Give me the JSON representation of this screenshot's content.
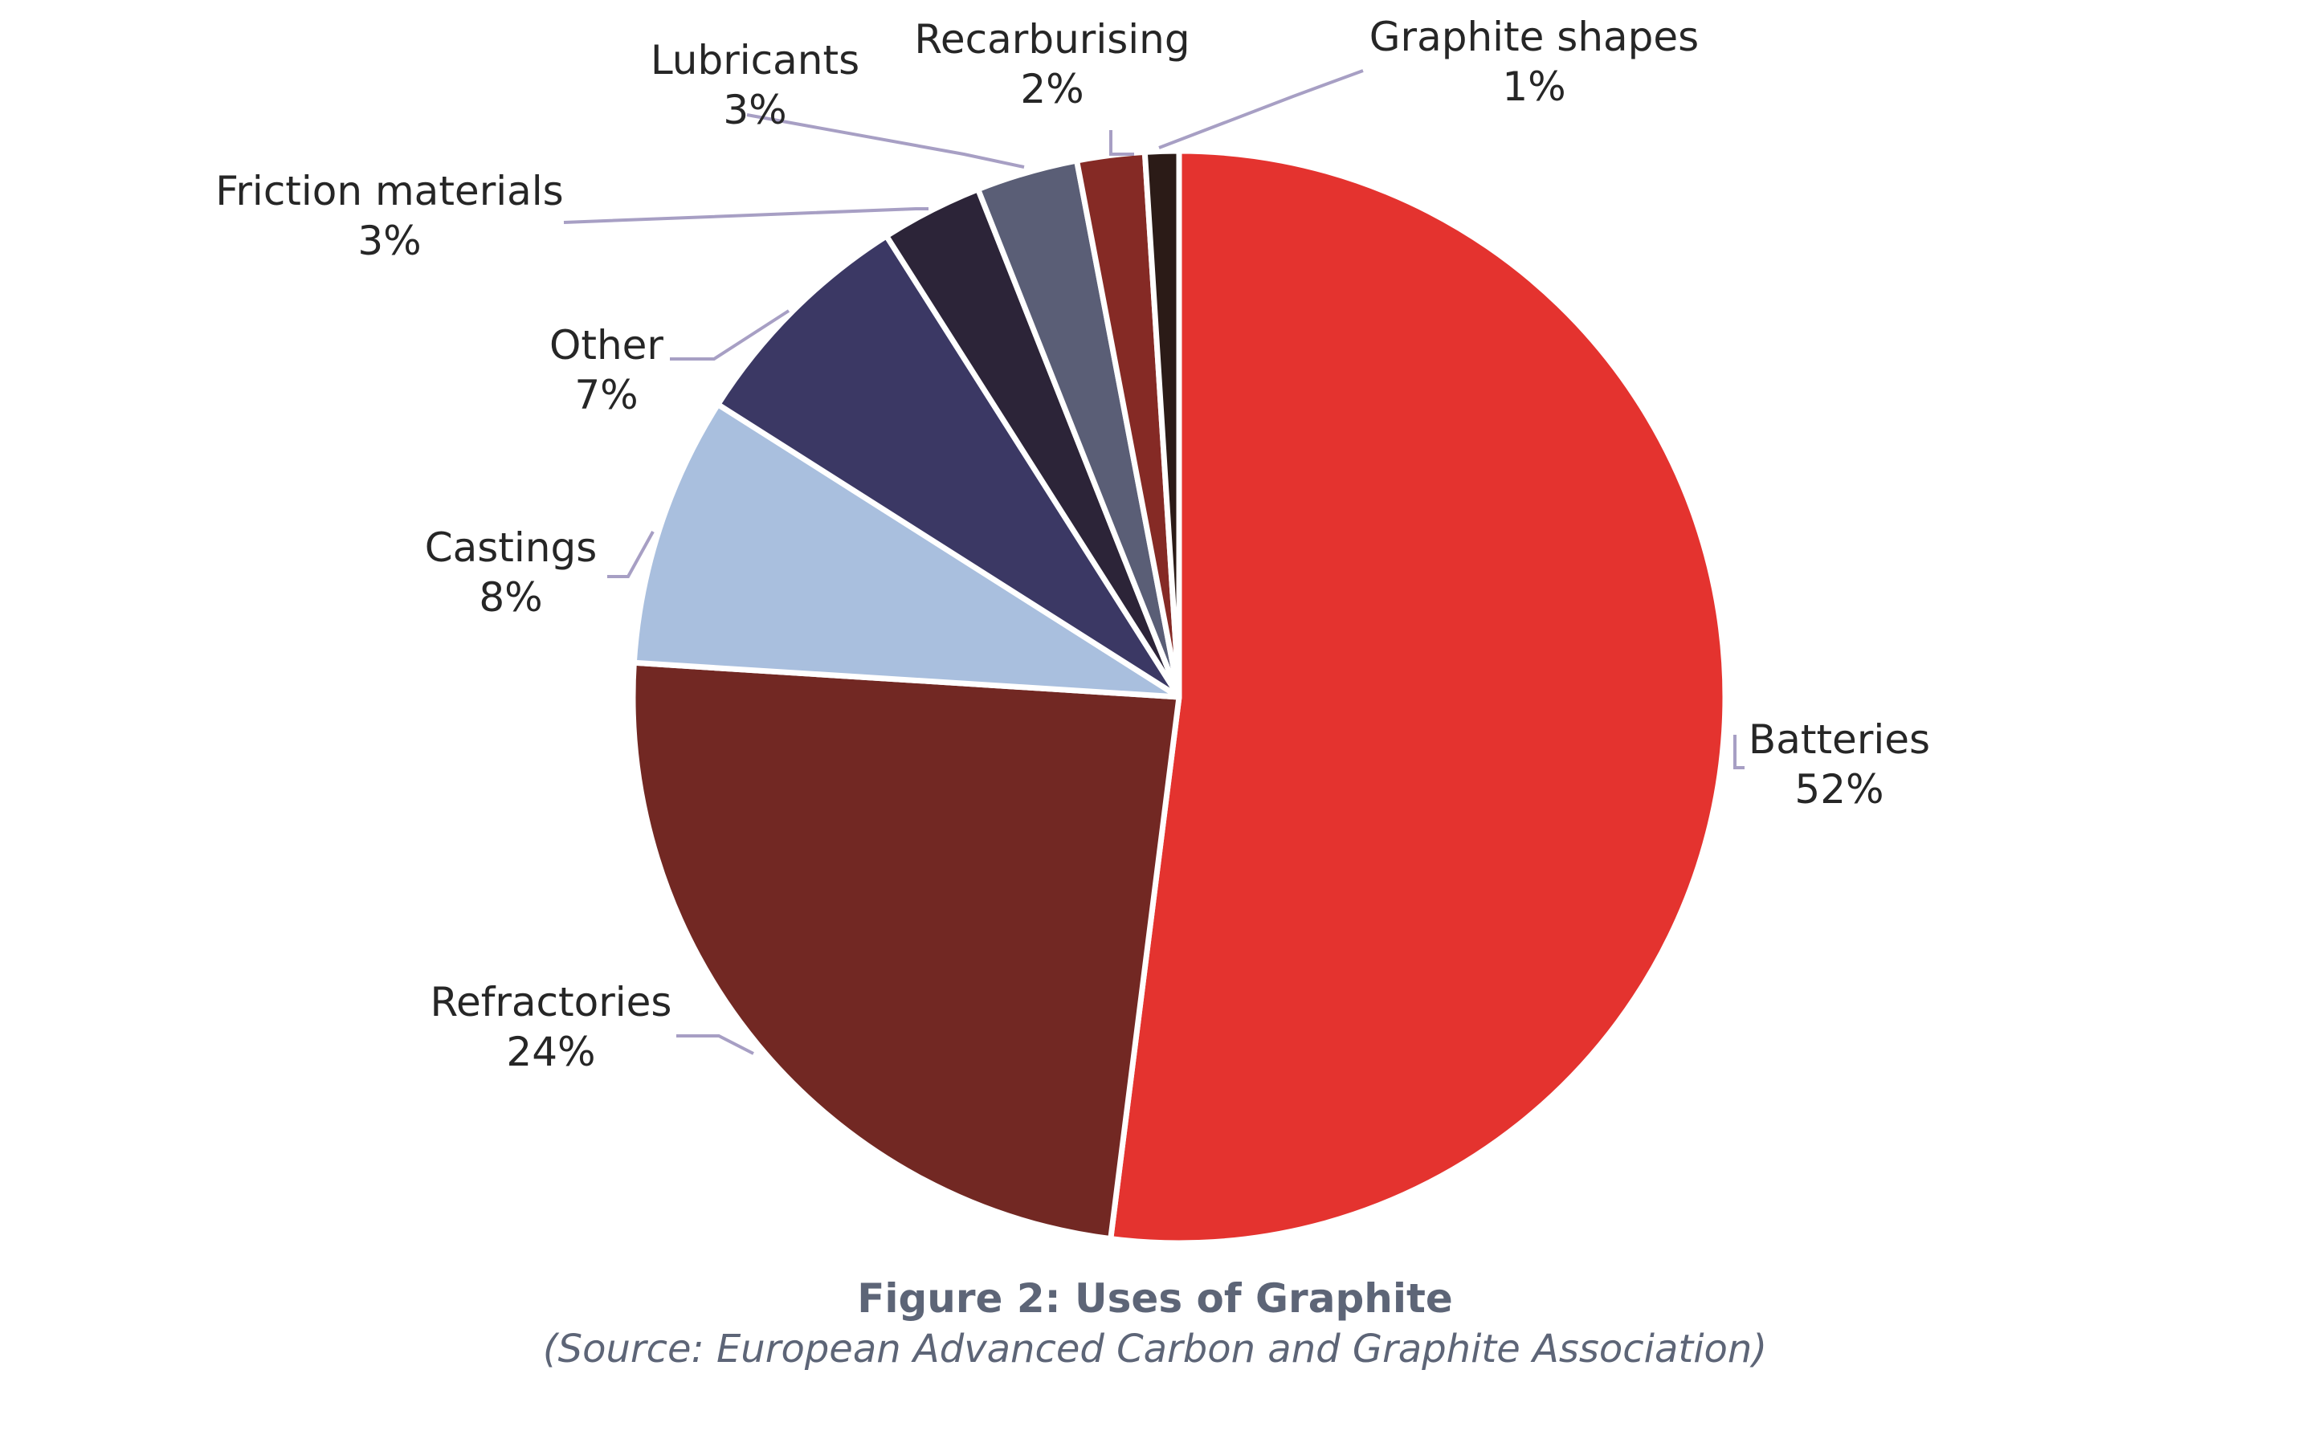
{
  "chart_data": {
    "type": "pie",
    "slices": [
      {
        "label": "Batteries",
        "value": 52,
        "display": "52%",
        "color": "#e4332f"
      },
      {
        "label": "Refractories",
        "value": 24,
        "display": "24%",
        "color": "#722823"
      },
      {
        "label": "Castings",
        "value": 8,
        "display": "8%",
        "color": "#a9bfde"
      },
      {
        "label": "Other",
        "value": 7,
        "display": "7%",
        "color": "#3b3864"
      },
      {
        "label": "Friction materials",
        "value": 3,
        "display": "3%",
        "color": "#2c2438"
      },
      {
        "label": "Lubricants",
        "value": 3,
        "display": "3%",
        "color": "#5a5e76"
      },
      {
        "label": "Recarburising",
        "value": 2,
        "display": "2%",
        "color": "#852a25"
      },
      {
        "label": "Graphite shapes",
        "value": 1,
        "display": "1%",
        "color": "#2b1b17"
      }
    ],
    "legend": "none",
    "data_labels": "outside with leader lines",
    "start": "12 o'clock, clockwise"
  },
  "caption": {
    "title": "Figure 2: Uses of Graphite",
    "source": "(Source: European Advanced Carbon and Graphite Association)"
  }
}
